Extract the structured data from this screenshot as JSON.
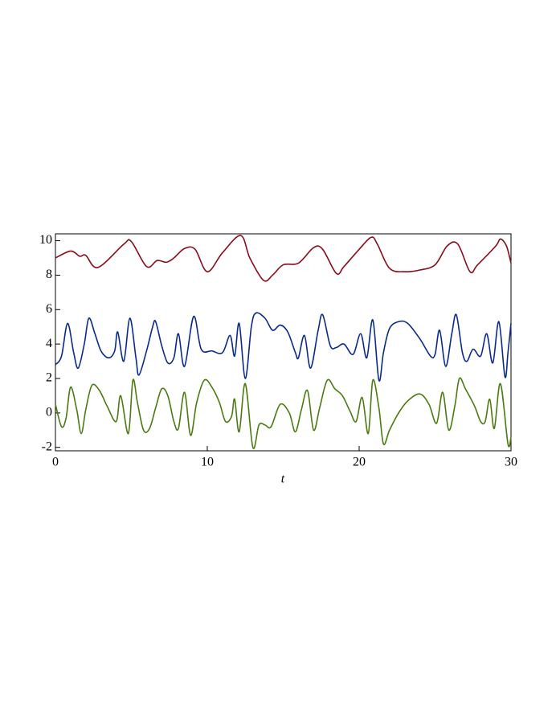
{
  "chart_data": {
    "type": "line",
    "xlabel": "t",
    "xlim": [
      0,
      30
    ],
    "ylim": [
      -2.2,
      10.4
    ],
    "xticks": [
      0,
      10,
      20,
      30
    ],
    "yticks": [
      -2,
      0,
      2,
      4,
      6,
      8,
      10
    ],
    "series": [
      {
        "color": "#8b0a1a",
        "x": [
          0,
          1,
          1.6,
          2,
          2.8,
          4.5,
          5,
          6,
          6.7,
          7.3,
          7.8,
          8.5,
          9.2,
          10,
          11,
          12.2,
          12.8,
          13.7,
          14.3,
          15,
          16,
          17,
          17.6,
          18.5,
          19,
          20,
          20.8,
          21.2,
          22,
          23,
          24,
          25,
          25.8,
          26.5,
          27.3,
          27.8,
          29,
          29.3,
          29.7,
          30
        ],
        "values": [
          9.0,
          9.4,
          9.1,
          9.15,
          8.45,
          9.8,
          9.95,
          8.5,
          8.85,
          8.75,
          9.0,
          9.55,
          9.5,
          8.2,
          9.3,
          10.3,
          9.0,
          7.7,
          8.0,
          8.6,
          8.7,
          9.6,
          9.5,
          8.1,
          8.5,
          9.5,
          10.2,
          9.8,
          8.4,
          8.2,
          8.3,
          8.6,
          9.7,
          9.8,
          8.2,
          8.6,
          9.7,
          10.1,
          9.7,
          8.7
        ]
      },
      {
        "color": "#0a2a8a",
        "x": [
          0,
          0.4,
          0.8,
          1.2,
          1.5,
          1.9,
          2.2,
          2.6,
          3.0,
          3.5,
          3.9,
          4.1,
          4.5,
          4.9,
          5.3,
          5.5,
          6.0,
          6.4,
          6.6,
          7.0,
          7.4,
          7.8,
          8.1,
          8.5,
          9.1,
          9.6,
          10.3,
          11.0,
          11.5,
          11.8,
          12.1,
          12.5,
          12.9,
          13.2,
          13.8,
          14.3,
          14.8,
          15.3,
          15.8,
          16.0,
          16.4,
          16.8,
          17.3,
          17.6,
          18.1,
          18.5,
          19.0,
          19.6,
          20.1,
          20.5,
          20.9,
          21.3,
          21.6,
          22.0,
          22.6,
          23.2,
          24.0,
          24.7,
          25.0,
          25.3,
          25.7,
          26.1,
          26.4,
          26.8,
          27.1,
          27.5,
          28.0,
          28.4,
          28.8,
          29.2,
          29.6,
          29.8,
          30
        ],
        "values": [
          2.8,
          3.3,
          5.2,
          3.5,
          2.6,
          4.0,
          5.5,
          4.6,
          3.6,
          3.2,
          3.6,
          4.7,
          3.0,
          5.5,
          3.2,
          2.2,
          3.6,
          5.0,
          5.3,
          3.9,
          2.9,
          3.2,
          4.6,
          2.7,
          5.6,
          3.7,
          3.6,
          3.5,
          4.5,
          3.3,
          5.2,
          2.0,
          5.0,
          5.8,
          5.5,
          4.8,
          5.1,
          4.7,
          3.5,
          3.2,
          4.5,
          2.6,
          4.8,
          5.7,
          3.9,
          3.8,
          4.0,
          3.4,
          4.6,
          3.2,
          5.4,
          1.9,
          3.5,
          4.9,
          5.3,
          5.2,
          4.3,
          3.3,
          3.4,
          4.8,
          2.7,
          4.6,
          5.7,
          3.5,
          3.0,
          3.7,
          3.3,
          4.6,
          2.9,
          5.3,
          2.1,
          3.5,
          5.2
        ]
      },
      {
        "color": "#4a7a10",
        "x": [
          0,
          0.4,
          0.7,
          1.0,
          1.4,
          1.7,
          2.0,
          2.4,
          2.9,
          3.4,
          4.0,
          4.3,
          4.8,
          5.1,
          5.4,
          5.8,
          6.2,
          6.6,
          7.0,
          7.4,
          7.8,
          8.1,
          8.5,
          8.9,
          9.3,
          9.8,
          10.3,
          10.8,
          11.2,
          11.6,
          11.8,
          12.1,
          12.5,
          13.0,
          13.4,
          13.8,
          14.2,
          14.8,
          15.4,
          15.8,
          16.2,
          16.6,
          17.0,
          17.4,
          17.9,
          18.4,
          18.9,
          19.4,
          19.8,
          20.2,
          20.6,
          20.9,
          21.3,
          21.6,
          22.0,
          22.6,
          23.2,
          24.0,
          24.6,
          25.1,
          25.5,
          25.9,
          26.3,
          26.6,
          27.0,
          27.6,
          28.0,
          28.3,
          28.6,
          28.9,
          29.3,
          29.8,
          30
        ],
        "values": [
          0.5,
          -0.8,
          -0.3,
          1.5,
          0.2,
          -1.2,
          0.2,
          1.6,
          1.3,
          0.4,
          -0.5,
          1.0,
          -1.2,
          1.9,
          0.6,
          -1.0,
          -0.9,
          0.3,
          1.4,
          1.0,
          -0.5,
          -0.9,
          1.2,
          -1.3,
          0.6,
          1.9,
          1.5,
          0.6,
          -0.5,
          -0.2,
          0.8,
          -1.1,
          1.7,
          -2.0,
          -0.7,
          -0.7,
          -0.8,
          0.5,
          0.0,
          -1.1,
          0.2,
          1.3,
          -1.0,
          0.3,
          1.9,
          1.4,
          1.0,
          0.1,
          -0.5,
          0.9,
          -1.2,
          1.9,
          0.3,
          -1.8,
          -1.0,
          0.0,
          0.7,
          1.1,
          0.5,
          -0.6,
          1.2,
          -1.0,
          0.4,
          2.0,
          1.4,
          0.4,
          -0.5,
          -0.5,
          0.8,
          -0.9,
          1.7,
          -1.8,
          -1.4
        ]
      }
    ]
  }
}
